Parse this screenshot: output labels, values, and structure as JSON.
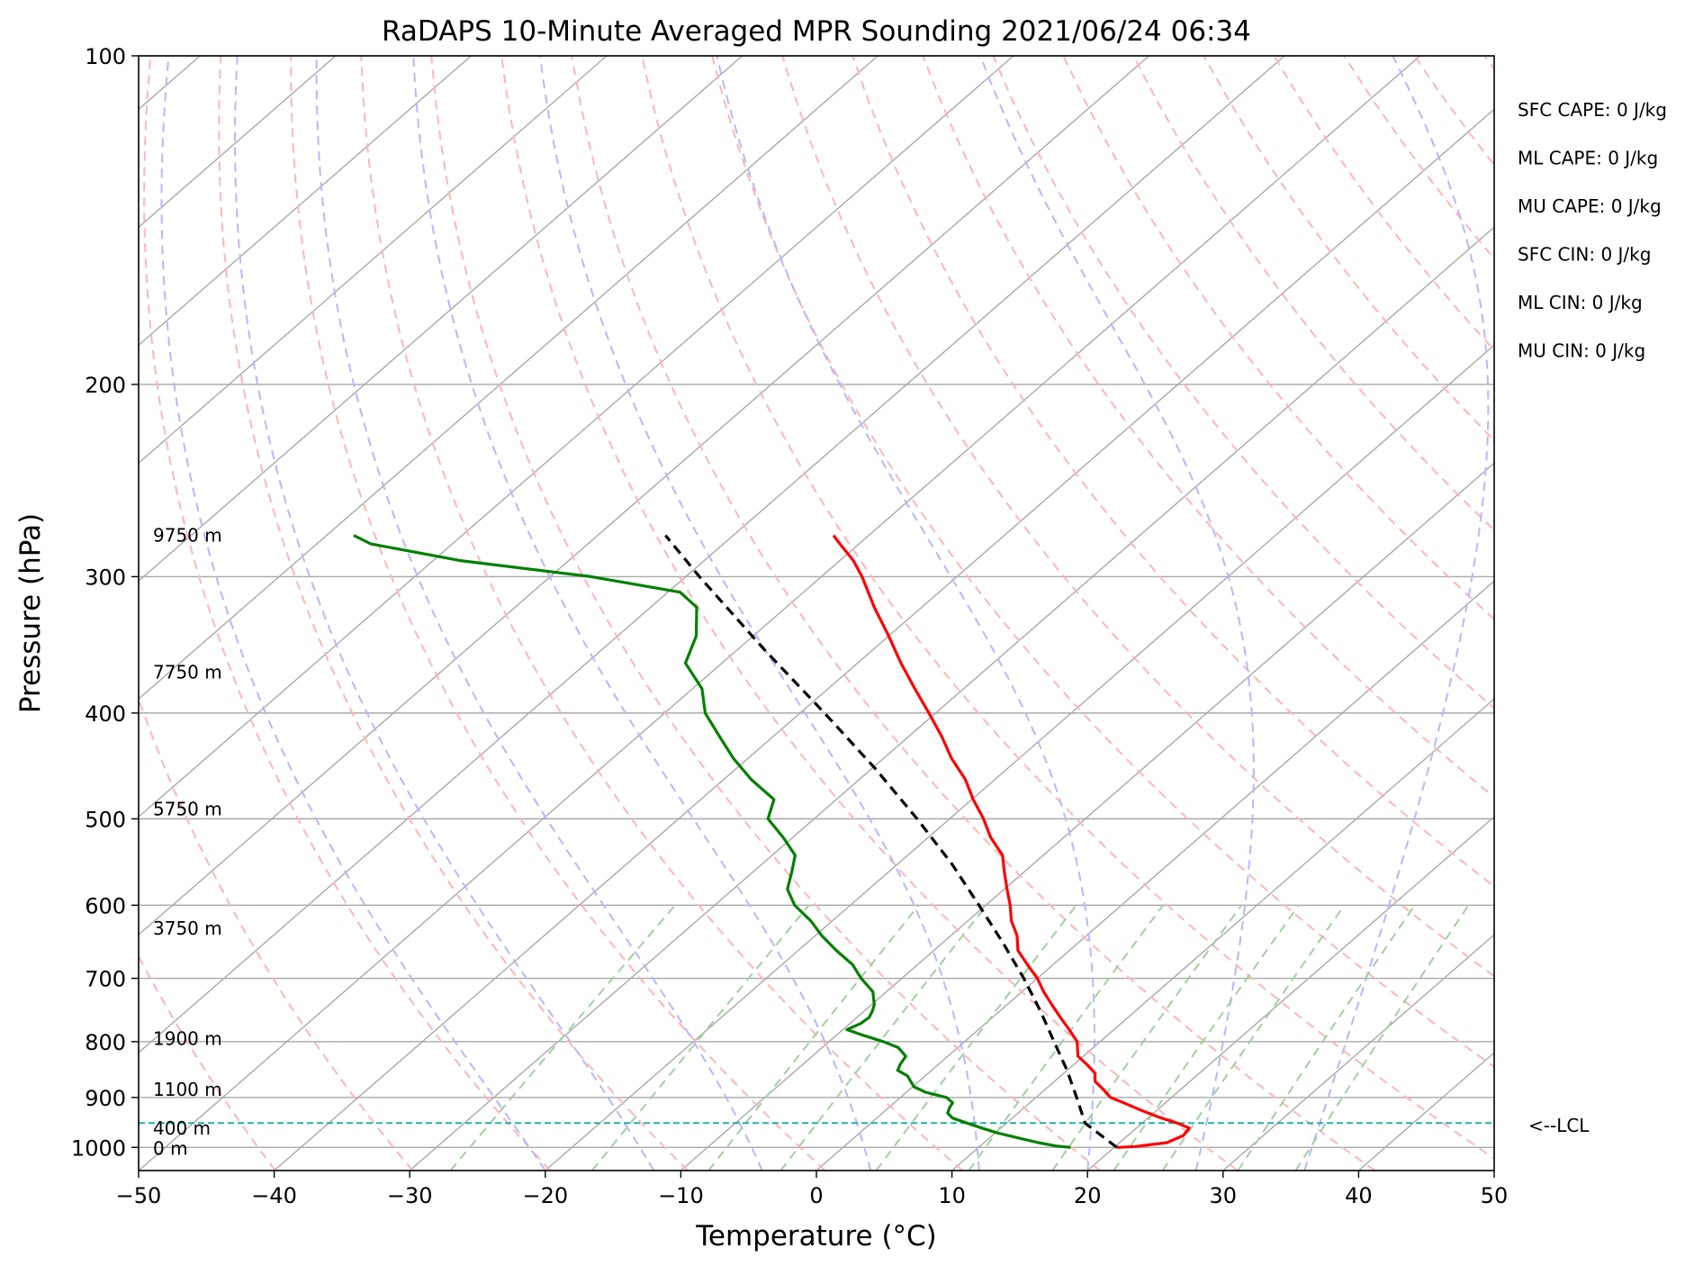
{
  "chart_data": {
    "type": "line",
    "title": "RaDAPS 10-Minute Averaged MPR Sounding 2021/06/24 06:34",
    "xlabel": "Temperature (°C)",
    "ylabel": "Pressure (hPa)",
    "xlim": [
      -50,
      50
    ],
    "ylim": [
      1050,
      100
    ],
    "y_scale": "log",
    "skew": "skew-T log-p",
    "grid": true,
    "x_ticks": [
      "−50",
      "−40",
      "−30",
      "−20",
      "−10",
      "0",
      "10",
      "20",
      "30",
      "40",
      "50"
    ],
    "x_tick_values": [
      -50,
      -40,
      -30,
      -20,
      -10,
      0,
      10,
      20,
      30,
      40,
      50
    ],
    "y_ticks": [
      "100",
      "200",
      "300",
      "400",
      "500",
      "600",
      "700",
      "800",
      "900",
      "1000"
    ],
    "y_tick_values": [
      100,
      200,
      300,
      400,
      500,
      600,
      700,
      800,
      900,
      1000
    ],
    "series": [
      {
        "key": "temperature",
        "color": "#ff0000",
        "p": [
          1000,
          998,
          990,
          975,
          960,
          950,
          940,
          925,
          910,
          900,
          885,
          870,
          855,
          840,
          825,
          800,
          780,
          760,
          740,
          720,
          700,
          680,
          660,
          640,
          620,
          600,
          580,
          560,
          540,
          520,
          500,
          480,
          460,
          440,
          420,
          400,
          380,
          360,
          340,
          320,
          300,
          290,
          280,
          275
        ],
        "t": [
          20.2,
          21.5,
          23.5,
          24.1,
          23.9,
          22.6,
          21.0,
          18.9,
          16.9,
          15.5,
          14.3,
          13.0,
          12.3,
          11.0,
          9.6,
          8.3,
          6.7,
          5.0,
          3.3,
          1.6,
          0.0,
          -1.9,
          -3.8,
          -5.1,
          -6.8,
          -8.2,
          -9.8,
          -11.4,
          -13.0,
          -15.4,
          -17.5,
          -19.9,
          -22.2,
          -25.0,
          -27.6,
          -30.5,
          -33.6,
          -36.8,
          -40.0,
          -43.5,
          -47.0,
          -49.0,
          -51.4,
          -52.6
        ]
      },
      {
        "key": "dewpoint",
        "color": "#008000",
        "p": [
          1000,
          997,
          990,
          980,
          970,
          960,
          950,
          940,
          930,
          920,
          910,
          900,
          890,
          880,
          870,
          860,
          850,
          840,
          825,
          810,
          800,
          790,
          780,
          770,
          760,
          750,
          740,
          720,
          700,
          680,
          660,
          640,
          620,
          600,
          580,
          560,
          540,
          520,
          500,
          480,
          460,
          440,
          420,
          400,
          380,
          360,
          340,
          320,
          310,
          300,
          290,
          280,
          275
        ],
        "td": [
          16.8,
          15.6,
          14.0,
          12.1,
          10.2,
          8.6,
          7.1,
          5.6,
          4.8,
          4.5,
          4.3,
          3.4,
          1.4,
          0.1,
          -0.6,
          -1.3,
          -2.5,
          -2.8,
          -3.1,
          -4.4,
          -6.0,
          -7.9,
          -9.7,
          -9.2,
          -9.1,
          -9.4,
          -9.8,
          -11.0,
          -13.0,
          -14.8,
          -17.2,
          -19.5,
          -21.6,
          -24.1,
          -26.0,
          -27.1,
          -28.3,
          -30.7,
          -33.4,
          -34.6,
          -38.0,
          -41.1,
          -44.0,
          -47.0,
          -49.3,
          -52.7,
          -54.2,
          -56.6,
          -59.1,
          -67.0,
          -78.0,
          -86.0,
          -88.0
        ]
      },
      {
        "key": "parcel",
        "color": "#000000",
        "dashed": true,
        "p": [
          1000,
          950,
          900,
          850,
          800,
          750,
          700,
          650,
          600,
          550,
          500,
          450,
          400,
          350,
          300,
          275
        ],
        "t": [
          20.2,
          15.8,
          13.0,
          10.0,
          6.6,
          3.0,
          -1.0,
          -5.5,
          -10.5,
          -16.0,
          -22.4,
          -29.7,
          -38.2,
          -48.0,
          -59.0,
          -65.0
        ]
      }
    ],
    "lcl": {
      "pressure": 950,
      "label": "<--LCL",
      "color": "#20b2aa"
    },
    "height_labels": [
      {
        "label": "9750 m",
        "p": 275
      },
      {
        "label": "7750 m",
        "p": 367
      },
      {
        "label": "5750 m",
        "p": 490
      },
      {
        "label": "3750 m",
        "p": 630
      },
      {
        "label": "1900 m",
        "p": 795
      },
      {
        "label": "1100 m",
        "p": 885
      },
      {
        "label": "400 m",
        "p": 960
      },
      {
        "label": "0 m",
        "p": 1002
      }
    ],
    "indices": [
      "SFC CAPE: 0 J/kg",
      "ML CAPE: 0 J/kg",
      "MU CAPE: 0 J/kg",
      "SFC CIN: 0 J/kg",
      "ML CIN: 0 J/kg",
      "MU CIN: 0 J/kg"
    ],
    "reference_lines": {
      "isotherm_color": "#a9a9a9",
      "dry_adiabat_color": "#ffb6b6",
      "moist_adiabat_color": "#b7b7ff",
      "mixing_ratio_color": "#9fd19f"
    }
  }
}
